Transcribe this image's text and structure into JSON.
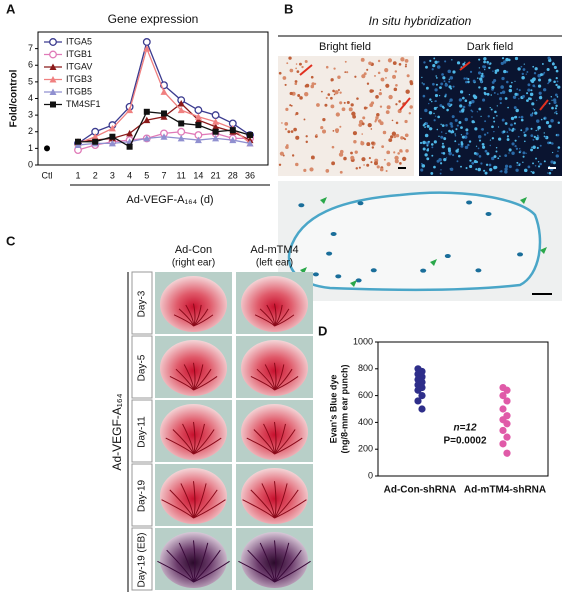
{
  "panel_labels": [
    "A",
    "B",
    "C",
    "D"
  ],
  "chart_data": [
    {
      "type": "line",
      "title": "Gene expression",
      "y_label": "Fold/control",
      "x_label": "Ad-VEGF-A₁₆₄ (d)",
      "categories": [
        "Ctl",
        "1",
        "2",
        "3",
        "4",
        "5",
        "7",
        "11",
        "14",
        "21",
        "28",
        "36"
      ],
      "control": {
        "value": 1,
        "color": "#000000"
      },
      "series": [
        {
          "name": "ITGA5",
          "color": "#3b3b8f",
          "marker": "circle-open",
          "values": [
            null,
            1.3,
            2.0,
            2.4,
            3.5,
            7.4,
            4.8,
            3.9,
            3.3,
            3.0,
            2.5,
            1.8
          ]
        },
        {
          "name": "ITGB1",
          "color": "#e07ab8",
          "marker": "circle-open",
          "values": [
            null,
            0.9,
            1.2,
            1.4,
            1.5,
            1.6,
            1.9,
            2.0,
            1.8,
            1.9,
            1.6,
            1.6
          ]
        },
        {
          "name": "ITGAV",
          "color": "#8b1a1a",
          "marker": "triangle",
          "values": [
            null,
            1.4,
            1.5,
            1.6,
            1.9,
            2.7,
            2.9,
            3.7,
            2.7,
            2.3,
            2.0,
            1.5
          ]
        },
        {
          "name": "ITGB3",
          "color": "#f08080",
          "marker": "triangle",
          "values": [
            null,
            1.3,
            1.7,
            2.2,
            3.3,
            7.0,
            4.4,
            3.3,
            2.9,
            2.6,
            2.2,
            1.3
          ]
        },
        {
          "name": "ITGB5",
          "color": "#9090d0",
          "marker": "triangle",
          "values": [
            null,
            1.2,
            1.3,
            1.3,
            1.4,
            1.6,
            1.7,
            1.6,
            1.5,
            1.6,
            1.5,
            1.3
          ]
        },
        {
          "name": "TM4SF1",
          "color": "#111111",
          "marker": "square",
          "values": [
            null,
            1.4,
            1.4,
            1.7,
            1.1,
            3.2,
            3.1,
            2.5,
            2.4,
            2.0,
            2.1,
            1.8
          ]
        }
      ],
      "ylim": [
        0,
        8
      ],
      "yticks": [
        0,
        1,
        2,
        3,
        4,
        5,
        6,
        7
      ],
      "legend": "top-left"
    },
    {
      "type": "strip",
      "y_label": [
        "Evan's Blue dye",
        "(ng/8-mm ear punch)"
      ],
      "categories": [
        "Ad-Con-shRNA",
        "Ad-mTM4-shRNA"
      ],
      "groups": [
        {
          "color": "#2e2e8a",
          "values": [
            800,
            780,
            760,
            740,
            720,
            700,
            680,
            660,
            640,
            600,
            560,
            500
          ]
        },
        {
          "color": "#e05aa8",
          "values": [
            660,
            640,
            600,
            560,
            500,
            450,
            420,
            390,
            340,
            290,
            240,
            170
          ]
        }
      ],
      "annotations": [
        "n=12",
        "P=0.0002"
      ],
      "ylim": [
        0,
        1000
      ],
      "yticks": [
        0,
        200,
        400,
        600,
        800,
        1000
      ]
    }
  ],
  "panel_b": {
    "title": "In situ hybridization",
    "columns": [
      "Bright field",
      "Dark field"
    ]
  },
  "panel_c": {
    "columns": [
      {
        "name": "Ad-Con",
        "note": "(right ear)"
      },
      {
        "name": "Ad-mTM4",
        "note": "(left ear)"
      }
    ],
    "rows": [
      "Day-3",
      "Day-5",
      "Day-11",
      "Day-19",
      "Day-19 (EB)"
    ],
    "group_label": "Ad-VEGF-A₁₆₄"
  }
}
